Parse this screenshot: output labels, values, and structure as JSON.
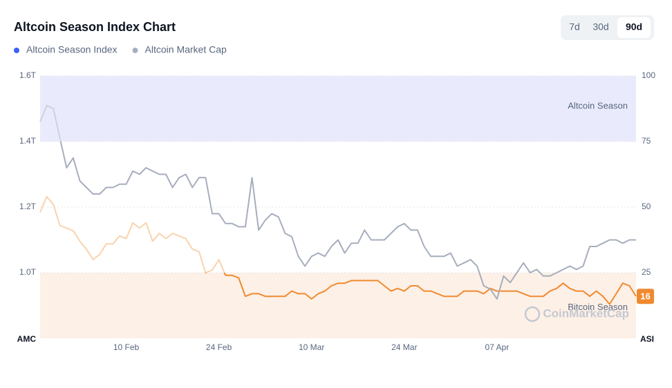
{
  "chart_data": {
    "type": "line",
    "title": "Altcoin Season Index Chart",
    "range_options": [
      "7d",
      "30d",
      "90d"
    ],
    "selected_range": "90d",
    "watermark": "CoinMarketCap",
    "ylabel": "AMC",
    "y2label": "ASI",
    "categories": [
      null,
      null,
      null,
      null,
      null,
      null,
      null,
      null,
      null,
      null,
      null,
      null,
      null,
      "10 Feb",
      null,
      null,
      null,
      null,
      null,
      null,
      null,
      null,
      null,
      null,
      null,
      null,
      null,
      "24 Feb",
      null,
      null,
      null,
      null,
      null,
      null,
      null,
      null,
      null,
      null,
      null,
      null,
      null,
      "10 Mar",
      null,
      null,
      null,
      null,
      null,
      null,
      null,
      null,
      null,
      null,
      null,
      null,
      null,
      "24 Mar",
      null,
      null,
      null,
      null,
      null,
      null,
      null,
      null,
      null,
      null,
      null,
      null,
      null,
      "07 Apr",
      null,
      null,
      null,
      null,
      null,
      null,
      null,
      null,
      null,
      null,
      null,
      null,
      null,
      null,
      null,
      null,
      null,
      null,
      null,
      null,
      null
    ],
    "ylim": [
      0.8,
      1.6
    ],
    "yticks": [
      {
        "value": 1.0,
        "label": "1.0T"
      },
      {
        "value": 1.2,
        "label": "1.2T"
      },
      {
        "value": 1.4,
        "label": "1.4T"
      },
      {
        "value": 1.6,
        "label": "1.6T"
      }
    ],
    "y2lim": [
      0,
      100
    ],
    "y2ticks": [
      25,
      50,
      75,
      100
    ],
    "grid": true,
    "bands": [
      {
        "label": "Altcoin Season",
        "from": 75,
        "to": 100,
        "color": "#e9ebfd"
      },
      {
        "label": "Bitcoin Season",
        "from": 0,
        "to": 25,
        "color": "#fdf0e6"
      }
    ],
    "series": [
      {
        "name": "Altcoin Season Index",
        "color": "#3861fb",
        "line_color": "#f0892f",
        "faded_color": "#f9d3ae",
        "axis": "y2",
        "values": [
          48,
          54,
          51,
          43,
          42,
          41,
          37,
          34,
          30,
          32,
          36,
          36,
          39,
          38,
          44,
          42,
          44,
          37,
          40,
          38,
          40,
          39,
          38,
          34,
          33,
          25,
          26,
          30,
          24,
          24,
          23,
          16,
          17,
          17,
          16,
          16,
          16,
          16,
          18,
          17,
          17,
          15,
          17,
          18,
          20,
          21,
          21,
          22,
          22,
          22,
          22,
          22,
          20,
          18,
          19,
          18,
          20,
          20,
          18,
          18,
          17,
          16,
          16,
          16,
          18,
          18,
          18,
          17,
          19,
          18,
          18,
          18,
          18,
          17,
          16,
          16,
          16,
          18,
          19,
          21,
          19,
          18,
          18,
          16,
          18,
          16,
          13,
          17,
          21,
          20,
          16
        ]
      },
      {
        "name": "Altcoin Market Cap",
        "color": "#a6b0c3",
        "line_color": "#a6adbd",
        "faded_color": "#cdd2dc",
        "values": [
          1.46,
          1.51,
          1.5,
          1.41,
          1.32,
          1.35,
          1.28,
          1.26,
          1.24,
          1.24,
          1.26,
          1.26,
          1.27,
          1.27,
          1.31,
          1.3,
          1.32,
          1.31,
          1.3,
          1.3,
          1.26,
          1.29,
          1.3,
          1.26,
          1.29,
          1.29,
          1.18,
          1.18,
          1.15,
          1.15,
          1.14,
          1.14,
          1.29,
          1.13,
          1.16,
          1.18,
          1.17,
          1.12,
          1.11,
          1.05,
          1.02,
          1.05,
          1.06,
          1.05,
          1.08,
          1.1,
          1.06,
          1.09,
          1.09,
          1.13,
          1.1,
          1.1,
          1.1,
          1.12,
          1.14,
          1.15,
          1.13,
          1.13,
          1.08,
          1.05,
          1.05,
          1.05,
          1.06,
          1.02,
          1.03,
          1.04,
          1.02,
          0.96,
          0.95,
          0.92,
          0.99,
          0.97,
          1.0,
          1.03,
          1.0,
          1.01,
          0.99,
          0.99,
          1.0,
          1.01,
          1.02,
          1.01,
          1.02,
          1.08,
          1.08,
          1.09,
          1.1,
          1.1,
          1.09,
          1.1,
          1.1
        ]
      }
    ]
  }
}
